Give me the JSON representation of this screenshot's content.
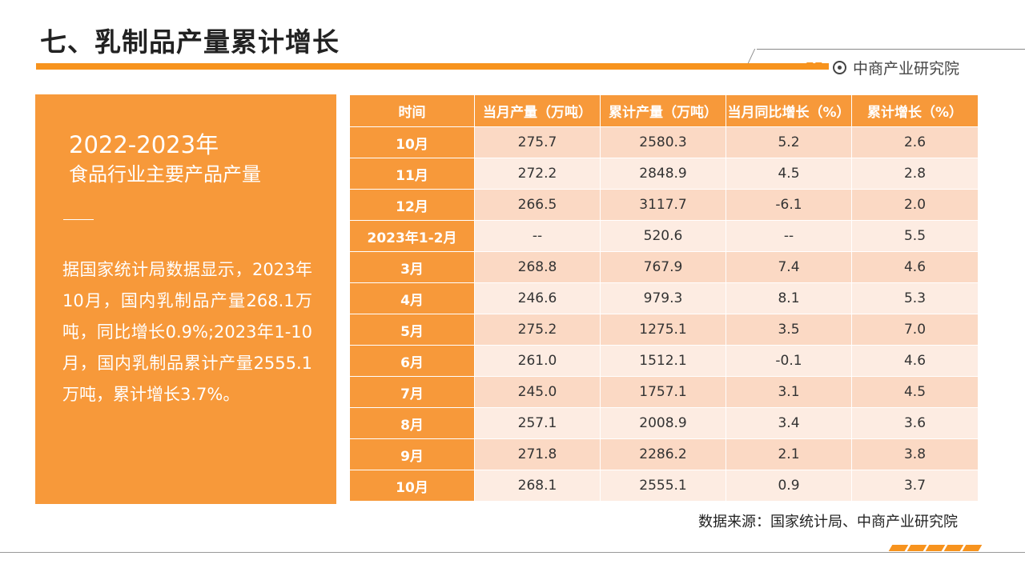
{
  "header": {
    "title": "七、乳制品产量累计增长",
    "brand": "中商产业研究院"
  },
  "panel": {
    "year": "2022-2023年",
    "heading": "食品行业主要产品产量",
    "text": "据国家统计局数据显示，2023年10月，国内乳制品产量268.1万吨，同比增长0.9%;2023年1-10月，国内乳制品累计产量2555.1万吨，累计增长3.7%。"
  },
  "table": {
    "headers": [
      "时间",
      "当月产量（万吨）",
      "累计产量（万吨）",
      "当月同比增长（%）",
      "累计增长（%）"
    ],
    "rows": [
      [
        "10月",
        "275.7",
        "2580.3",
        "5.2",
        "2.6"
      ],
      [
        "11月",
        "272.2",
        "2848.9",
        "4.5",
        "2.8"
      ],
      [
        "12月",
        "266.5",
        "3117.7",
        "-6.1",
        "2.0"
      ],
      [
        "2023年1-2月",
        "--",
        "520.6",
        "--",
        "5.5"
      ],
      [
        "3月",
        "268.8",
        "767.9",
        "7.4",
        "4.6"
      ],
      [
        "4月",
        "246.6",
        "979.3",
        "8.1",
        "5.3"
      ],
      [
        "5月",
        "275.2",
        "1275.1",
        "3.5",
        "7.0"
      ],
      [
        "6月",
        "261.0",
        "1512.1",
        "-0.1",
        "4.6"
      ],
      [
        "7月",
        "245.0",
        "1757.1",
        "3.1",
        "4.5"
      ],
      [
        "8月",
        "257.1",
        "2008.9",
        "3.4",
        "3.6"
      ],
      [
        "9月",
        "271.8",
        "2286.2",
        "2.1",
        "3.8"
      ],
      [
        "10月",
        "268.1",
        "2555.1",
        "0.9",
        "3.7"
      ]
    ]
  },
  "footer": {
    "source": "数据来源：国家统计局、中商产业研究院"
  },
  "colors": {
    "accent": "#f7931e",
    "panel": "#f7993a",
    "row_odd": "#fbd9c4",
    "row_even": "#fdece2"
  }
}
